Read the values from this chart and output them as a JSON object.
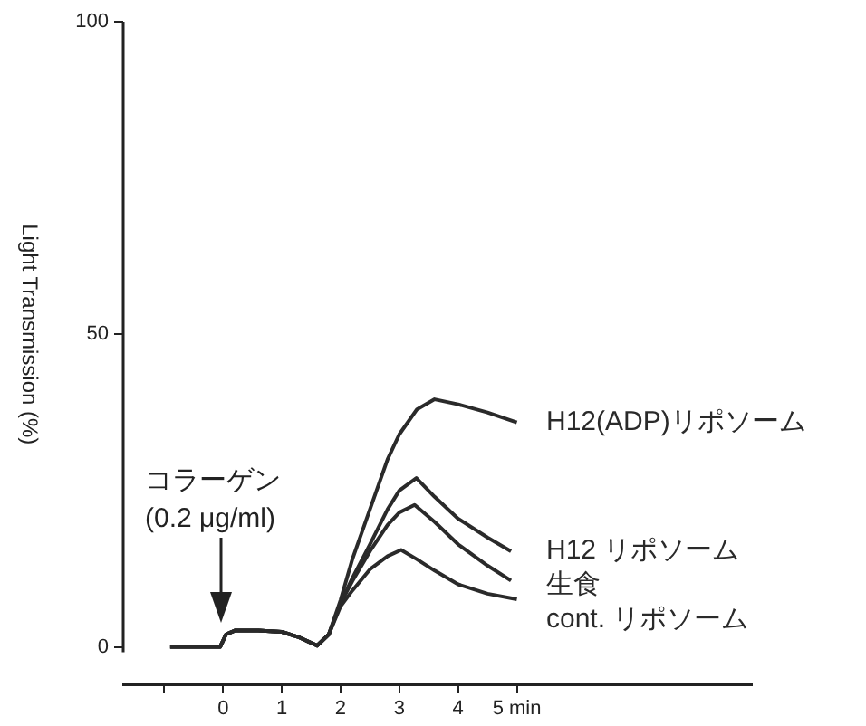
{
  "chart_data": {
    "type": "line",
    "ylabel": "Light Transmission (%)",
    "xlim": [
      -1.7,
      9
    ],
    "xticks": [
      {
        "value": -1,
        "label": null
      },
      0,
      1,
      2,
      3,
      4,
      {
        "value": 5,
        "label": "5 min"
      }
    ],
    "ylim": [
      -6,
      100
    ],
    "yticks": [
      0,
      50,
      100
    ],
    "grid": false,
    "legend": false,
    "marker": "none",
    "line_style": "solid",
    "series": [
      {
        "name": "H12(ADP)リポソーム",
        "color": "#2a2a2a",
        "x": [
          -0.9,
          -0.5,
          -0.05,
          0.05,
          0.2,
          0.6,
          1.0,
          1.3,
          1.6,
          1.8,
          2.0,
          2.2,
          2.5,
          2.8,
          3.0,
          3.3,
          3.6,
          4.0,
          4.5,
          5.0
        ],
        "values": [
          0,
          0,
          0,
          2,
          2.6,
          2.6,
          2.4,
          1.5,
          0.2,
          2,
          7.5,
          14,
          22,
          30,
          34,
          38,
          39.6,
          38.8,
          37.5,
          35.9
        ]
      },
      {
        "name": "H12 リポソーム",
        "color": "#2a2a2a",
        "x": [
          -0.9,
          -0.5,
          -0.05,
          0.05,
          0.2,
          0.6,
          1.0,
          1.3,
          1.6,
          1.8,
          2.0,
          2.2,
          2.5,
          2.8,
          3.0,
          3.29,
          3.6,
          4.0,
          4.5,
          4.9
        ],
        "values": [
          0,
          0,
          0,
          2,
          2.6,
          2.6,
          2.4,
          1.5,
          0.2,
          2,
          7,
          11,
          16.4,
          22,
          25,
          27,
          24,
          20.5,
          17.5,
          15.3
        ]
      },
      {
        "name": "生食",
        "color": "#2a2a2a",
        "x": [
          -0.9,
          -0.5,
          -0.05,
          0.05,
          0.2,
          0.6,
          1.0,
          1.3,
          1.6,
          1.8,
          2.0,
          2.2,
          2.5,
          2.8,
          3.0,
          3.26,
          3.6,
          4.0,
          4.5,
          4.9
        ],
        "values": [
          0,
          0,
          0,
          2,
          2.6,
          2.6,
          2.4,
          1.5,
          0.2,
          2,
          7,
          10.5,
          15.3,
          19.5,
          21.5,
          22.7,
          20,
          16.4,
          13,
          10.6
        ]
      },
      {
        "name": "cont. リポソーム",
        "color": "#2a2a2a",
        "x": [
          -0.9,
          -0.5,
          -0.05,
          0.05,
          0.2,
          0.6,
          1.0,
          1.3,
          1.6,
          1.8,
          2.0,
          2.2,
          2.5,
          2.8,
          3.03,
          3.3,
          3.6,
          4.0,
          4.5,
          5.0
        ],
        "values": [
          0,
          0,
          0,
          2,
          2.6,
          2.6,
          2.4,
          1.5,
          0.2,
          2,
          6.5,
          9,
          12.4,
          14.5,
          15.5,
          14,
          12.2,
          10,
          8.5,
          7.6
        ]
      }
    ],
    "annotations": [
      "コラーゲン",
      "(0.2 μg/ml)"
    ]
  }
}
